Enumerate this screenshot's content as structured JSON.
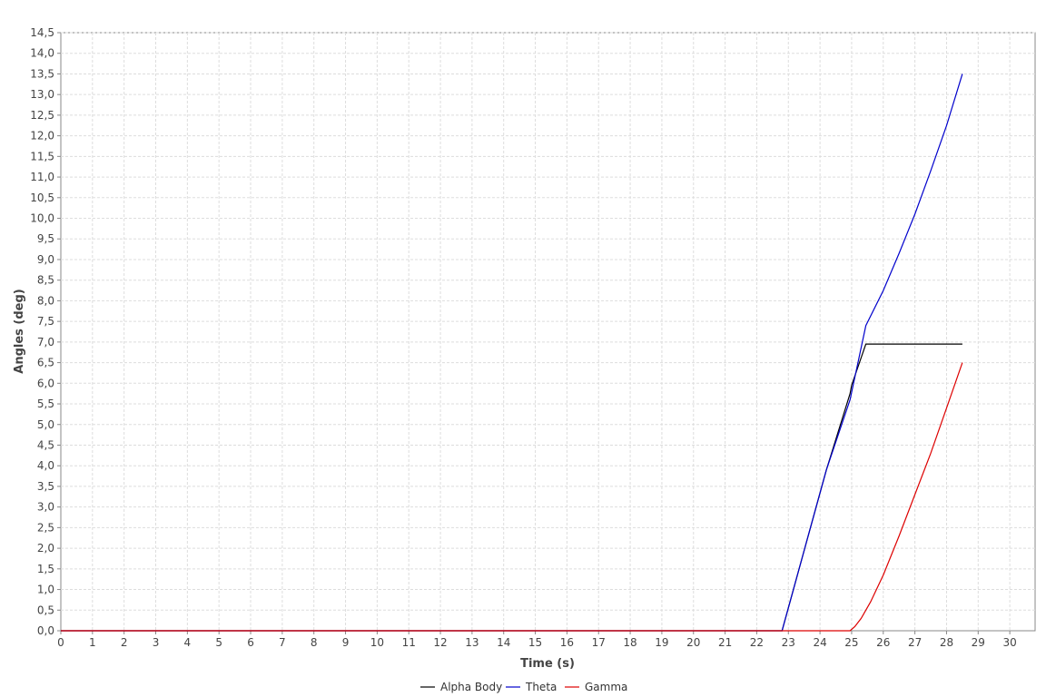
{
  "chart_data": {
    "type": "line",
    "title": "",
    "xlabel": "Time (s)",
    "ylabel": "Angles (deg)",
    "xlim": [
      0,
      30.8
    ],
    "ylim": [
      0,
      14.5
    ],
    "x_ticks": [
      0,
      1,
      2,
      3,
      4,
      5,
      6,
      7,
      8,
      9,
      10,
      11,
      12,
      13,
      14,
      15,
      16,
      17,
      18,
      19,
      20,
      21,
      22,
      23,
      24,
      25,
      26,
      27,
      28,
      29,
      30
    ],
    "y_ticks": [
      "0,0",
      "0,5",
      "1,0",
      "1,5",
      "2,0",
      "2,5",
      "3,0",
      "3,5",
      "4,0",
      "4,5",
      "5,0",
      "5,5",
      "6,0",
      "6,5",
      "7,0",
      "7,5",
      "8,0",
      "8,5",
      "9,0",
      "9,5",
      "10,0",
      "10,5",
      "11,0",
      "11,5",
      "12,0",
      "12,5",
      "13,0",
      "13,5",
      "14,0",
      "14,5"
    ],
    "grid": true,
    "legend_position": "bottom-center",
    "series": [
      {
        "name": "Alpha Body",
        "color": "#000000",
        "points": [
          [
            0,
            0
          ],
          [
            22.8,
            0
          ],
          [
            23.5,
            1.95
          ],
          [
            24.2,
            3.9
          ],
          [
            24.95,
            5.75
          ],
          [
            25.0,
            5.95
          ],
          [
            25.45,
            6.95
          ],
          [
            28.5,
            6.95
          ]
        ]
      },
      {
        "name": "Theta",
        "color": "#0000cc",
        "points": [
          [
            0,
            0
          ],
          [
            22.8,
            0
          ],
          [
            23.5,
            1.95
          ],
          [
            24.2,
            3.9
          ],
          [
            24.95,
            5.6
          ],
          [
            25.45,
            7.4
          ],
          [
            26,
            8.25
          ],
          [
            26.5,
            9.15
          ],
          [
            27,
            10.1
          ],
          [
            27.5,
            11.15
          ],
          [
            28,
            12.25
          ],
          [
            28.5,
            13.5
          ]
        ]
      },
      {
        "name": "Gamma",
        "color": "#dd0000",
        "points": [
          [
            0,
            0
          ],
          [
            24.95,
            0
          ],
          [
            25.1,
            0.1
          ],
          [
            25.3,
            0.3
          ],
          [
            25.6,
            0.7
          ],
          [
            26,
            1.35
          ],
          [
            26.5,
            2.3
          ],
          [
            27,
            3.3
          ],
          [
            27.5,
            4.3
          ],
          [
            28,
            5.4
          ],
          [
            28.5,
            6.5
          ]
        ]
      }
    ]
  }
}
